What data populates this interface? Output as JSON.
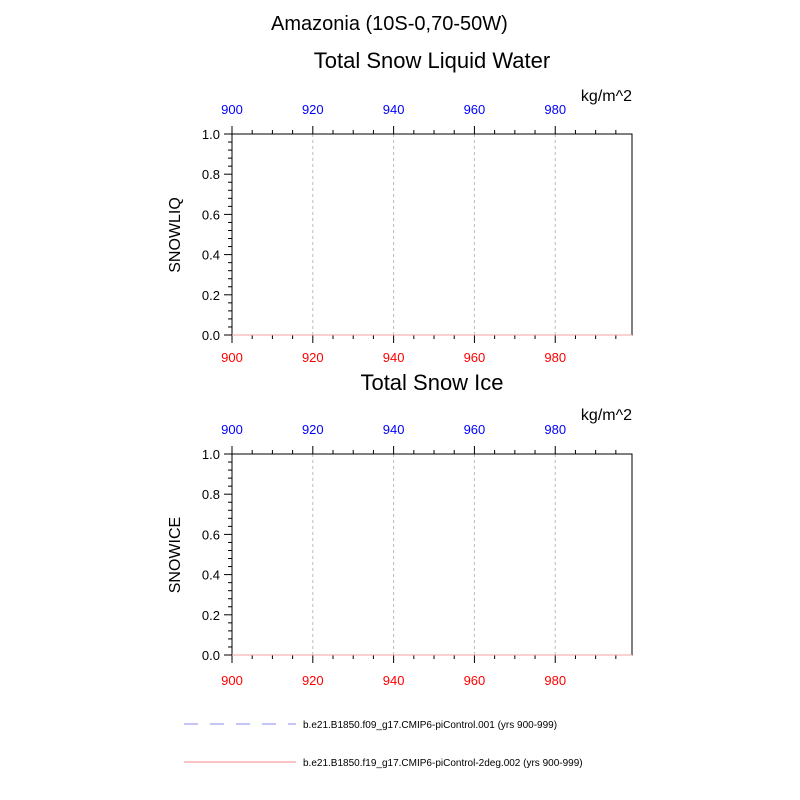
{
  "figure": {
    "title": "Amazonia (10S-0,70-50W)"
  },
  "chart_data": [
    {
      "type": "line",
      "title": "Total Snow Liquid Water",
      "ylabel": "SNOWLIQ",
      "units": "kg/m^2",
      "xlim": [
        900,
        999
      ],
      "ylim": [
        0.0,
        1.0
      ],
      "x_ticks": [
        900,
        920,
        940,
        960,
        980
      ],
      "x_tick_labels": [
        "900",
        "920",
        "940",
        "960",
        "980"
      ],
      "y_ticks": [
        0.0,
        0.2,
        0.4,
        0.6,
        0.8,
        1.0
      ],
      "y_tick_labels": [
        "0.0",
        "0.2",
        "0.4",
        "0.6",
        "0.8",
        "1.0"
      ],
      "top_axis_color": "#0000ff",
      "bottom_axis_color": "#ff0000",
      "vertical_gridlines": [
        920,
        940,
        960,
        980
      ],
      "series": [
        {
          "name": "b.e21.B1850.f09_g17.CMIP6-piControl.001 (yrs 900-999)",
          "x": [
            900,
            999
          ],
          "y": [
            0.0,
            0.0
          ]
        },
        {
          "name": "b.e21.B1850.f19_g17.CMIP6-piControl-2deg.002 (yrs 900-999)",
          "x": [
            900,
            999
          ],
          "y": [
            0.0,
            0.0
          ]
        }
      ]
    },
    {
      "type": "line",
      "title": "Total Snow Ice",
      "ylabel": "SNOWICE",
      "units": "kg/m^2",
      "xlim": [
        900,
        999
      ],
      "ylim": [
        0.0,
        1.0
      ],
      "x_ticks": [
        900,
        920,
        940,
        960,
        980
      ],
      "x_tick_labels": [
        "900",
        "920",
        "940",
        "960",
        "980"
      ],
      "y_ticks": [
        0.0,
        0.2,
        0.4,
        0.6,
        0.8,
        1.0
      ],
      "y_tick_labels": [
        "0.0",
        "0.2",
        "0.4",
        "0.6",
        "0.8",
        "1.0"
      ],
      "top_axis_color": "#0000ff",
      "bottom_axis_color": "#ff0000",
      "vertical_gridlines": [
        920,
        940,
        960,
        980
      ],
      "series": [
        {
          "name": "b.e21.B1850.f09_g17.CMIP6-piControl.001 (yrs 900-999)",
          "x": [
            900,
            999
          ],
          "y": [
            0.0,
            0.0
          ]
        },
        {
          "name": "b.e21.B1850.f19_g17.CMIP6-piControl-2deg.002 (yrs 900-999)",
          "x": [
            900,
            999
          ],
          "y": [
            0.0,
            0.0
          ]
        }
      ]
    }
  ],
  "legend": [
    {
      "label": "b.e21.B1850.f09_g17.CMIP6-piControl.001 (yrs 900-999)",
      "color": "#a0a0f0",
      "dash": "dashed"
    },
    {
      "label": "b.e21.B1850.f19_g17.CMIP6-piControl-2deg.002 (yrs 900-999)",
      "color": "#f4a0a0",
      "dash": "solid"
    }
  ]
}
